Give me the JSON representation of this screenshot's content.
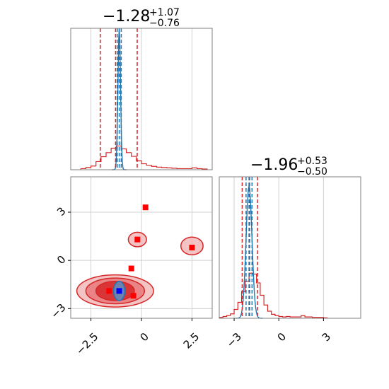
{
  "colors": {
    "series_a": "#d62728",
    "series_a_fill_light": "#f2b8b9",
    "series_a_fill_mid": "#e8797b",
    "series_b": "#1f77b4",
    "marker_red": "#ff0000",
    "marker_blue": "#0000ff",
    "grid": "#d0d0d0",
    "frame": "#808080"
  },
  "chart_data": [
    {
      "type": "histogram",
      "panel": "marginal-x",
      "title": {
        "median": "−1.28",
        "plus": "+1.07",
        "minus": "−0.76"
      },
      "xlim": [
        -3.5,
        3.5
      ],
      "xticks": [
        -2.5,
        0.0,
        2.5
      ],
      "grid": true,
      "series": [
        {
          "color": "#d62728",
          "bins_x": [
            -3.0,
            -2.75,
            -2.5,
            -2.25,
            -2.0,
            -1.75,
            -1.5,
            -1.25,
            -1.0,
            -0.75,
            -0.5,
            -0.25,
            0.0,
            0.25,
            0.5,
            0.75,
            1.0,
            1.25,
            1.5,
            1.75,
            2.0,
            2.25,
            2.5,
            2.75,
            3.0
          ],
          "counts": [
            0.3,
            0.6,
            1.0,
            2.2,
            3.5,
            4.6,
            5.8,
            6.4,
            5.6,
            4.6,
            3.6,
            2.4,
            1.6,
            1.2,
            0.9,
            0.7,
            0.6,
            0.5,
            0.4,
            0.3,
            0.3,
            0.3,
            0.5,
            0.3,
            0.2
          ],
          "quantiles": [
            -2.04,
            -1.28,
            -0.21
          ]
        },
        {
          "color": "#1f77b4",
          "peak_x": -1.1,
          "peak_height": 38,
          "quantiles": [
            -1.2,
            -1.1,
            -1.0
          ]
        }
      ]
    },
    {
      "type": "histogram",
      "panel": "marginal-y",
      "title": {
        "median": "−1.96",
        "plus": "+0.53",
        "minus": "−0.50"
      },
      "xlim": [
        -4.0,
        5.5
      ],
      "xticks": [
        -3,
        0,
        3
      ],
      "grid": true,
      "series": [
        {
          "color": "#d62728",
          "bins_x": [
            -4.0,
            -3.75,
            -3.5,
            -3.25,
            -3.0,
            -2.75,
            -2.5,
            -2.25,
            -2.0,
            -1.75,
            -1.5,
            -1.25,
            -1.0,
            -0.75,
            -0.5,
            -0.25,
            0.0,
            0.25,
            0.5,
            0.75,
            1.0,
            1.25,
            1.5,
            1.75,
            2.0,
            2.25,
            2.5,
            2.75,
            3.0
          ],
          "counts": [
            0.2,
            0.4,
            0.6,
            1.0,
            2.0,
            3.6,
            6.0,
            8.4,
            10.2,
            10.0,
            8.0,
            5.2,
            3.0,
            1.6,
            0.9,
            0.6,
            0.4,
            0.3,
            0.4,
            0.3,
            0.3,
            0.3,
            0.6,
            0.3,
            0.3,
            0.2,
            0.2,
            0.2,
            0.1
          ],
          "quantiles": [
            -2.46,
            -1.96,
            -1.43
          ]
        },
        {
          "color": "#1f77b4",
          "peak_x": -2.0,
          "peak_height": 30,
          "quantiles": [
            -2.2,
            -2.0,
            -1.8
          ]
        }
      ]
    },
    {
      "type": "scatter",
      "panel": "joint",
      "xlim": [
        -3.5,
        3.5
      ],
      "ylim": [
        -3.6,
        5.2
      ],
      "xticks": [
        -2.5,
        0.0,
        2.5
      ],
      "yticks": [
        -3,
        0,
        3
      ],
      "grid": true,
      "markers": [
        {
          "x": 0.2,
          "y": 3.3,
          "color": "#ff0000"
        },
        {
          "x": -0.2,
          "y": 1.3,
          "color": "#ff0000"
        },
        {
          "x": 2.5,
          "y": 0.8,
          "color": "#ff0000"
        },
        {
          "x": -0.5,
          "y": -0.5,
          "color": "#ff0000"
        },
        {
          "x": -1.6,
          "y": -1.9,
          "color": "#ff0000"
        },
        {
          "x": -0.4,
          "y": -2.2,
          "color": "#ff0000"
        },
        {
          "x": -1.1,
          "y": -1.9,
          "color": "#0000ff"
        }
      ],
      "contours": [
        {
          "level": "outer",
          "color": "#d62728",
          "fill": "#f2b8b9",
          "blobs": [
            {
              "cx": -1.3,
              "cy": -1.9,
              "rx": 1.9,
              "ry": 1.0
            },
            {
              "cx": -0.2,
              "cy": 1.3,
              "rx": 0.45,
              "ry": 0.45
            },
            {
              "cx": 2.5,
              "cy": 0.9,
              "rx": 0.55,
              "ry": 0.55
            }
          ]
        },
        {
          "level": "middle",
          "color": "#d62728",
          "fill": "#e8797b",
          "blobs": [
            {
              "cx": -1.3,
              "cy": -1.9,
              "rx": 1.45,
              "ry": 0.8
            }
          ]
        },
        {
          "level": "inner",
          "color": "#d62728",
          "fill": "#d62728",
          "blobs": [
            {
              "cx": -1.3,
              "cy": -1.9,
              "rx": 0.95,
              "ry": 0.6
            }
          ]
        },
        {
          "level": "blue",
          "color": "#1f77b4",
          "fill": "#5a8fc4",
          "blobs": [
            {
              "cx": -1.1,
              "cy": -1.9,
              "rx": 0.28,
              "ry": 0.6
            }
          ]
        }
      ]
    }
  ]
}
